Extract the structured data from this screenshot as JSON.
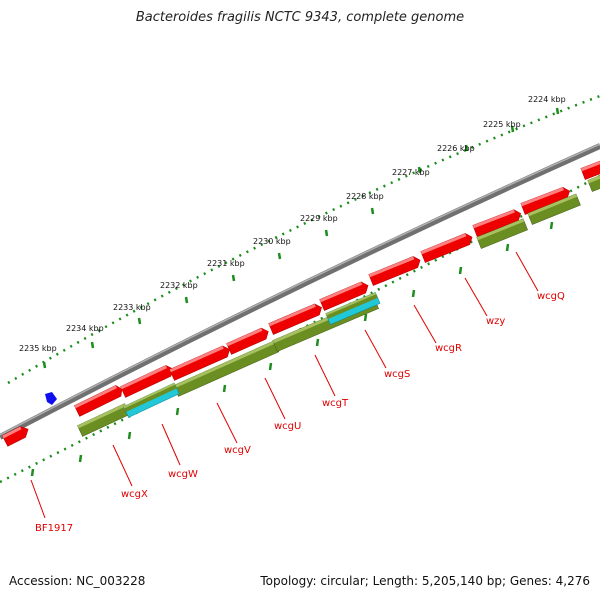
{
  "title": "Bacteroides fragilis NCTC 9343, complete genome",
  "accession": "Accession: NC_003228",
  "topology": "Topology: circular; Length: 5,205,140 bp; Genes: 4,276",
  "colors": {
    "forward_gene": "#ee0000",
    "reverse_gene": "#6b8e23",
    "cyan_feature": "#20c8d8",
    "backbone": "#808080",
    "scale_ticks": "#1e8c1e",
    "label": "#e00000",
    "marker": "#1010ee"
  },
  "scale_labels": [
    "2224 kbp",
    "2225 kbp",
    "2226 kbp",
    "2227 kbp",
    "2228 kbp",
    "2229 kbp",
    "2230 kbp",
    "2231 kbp",
    "2232 kbp",
    "2233 kbp",
    "2234 kbp",
    "2235 kbp"
  ],
  "gene_labels": [
    "wcgQ",
    "wzy",
    "wcgR",
    "wcgS",
    "wcgT",
    "wcgU",
    "wcgV",
    "wcgW",
    "wcgX",
    "BF1917"
  ],
  "marker_icon": "blue-arrow-marker-icon"
}
